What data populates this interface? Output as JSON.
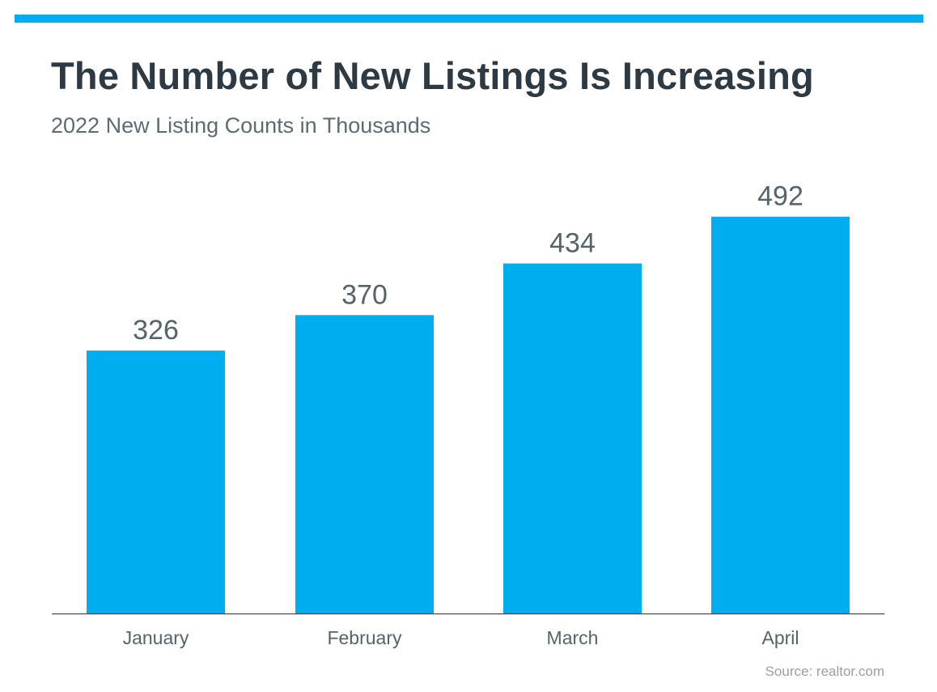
{
  "header": {
    "title": "The Number of New Listings Is Increasing",
    "subtitle": "2022 New Listing Counts in Thousands"
  },
  "footer": {
    "source": "Source: realtor.com"
  },
  "colors": {
    "accent_bar": "#00aeef",
    "bar": "#00aeef",
    "title": "#2d3a43",
    "subtitle": "#5b6c74",
    "data_label": "#55636b",
    "tick_label": "#55636b",
    "axis": "#4a4a4a",
    "source": "#9aa1a6"
  },
  "chart_data": {
    "type": "bar",
    "title": "The Number of New Listings Is Increasing",
    "subtitle": "2022 New Listing Counts in Thousands",
    "categories": [
      "January",
      "February",
      "March",
      "April"
    ],
    "values": [
      326,
      370,
      434,
      492
    ],
    "data_labels": [
      "326",
      "370",
      "434",
      "492"
    ],
    "xlabel": "",
    "ylabel": "",
    "ylim": [
      0,
      570
    ],
    "grid": false,
    "legend": "none"
  }
}
